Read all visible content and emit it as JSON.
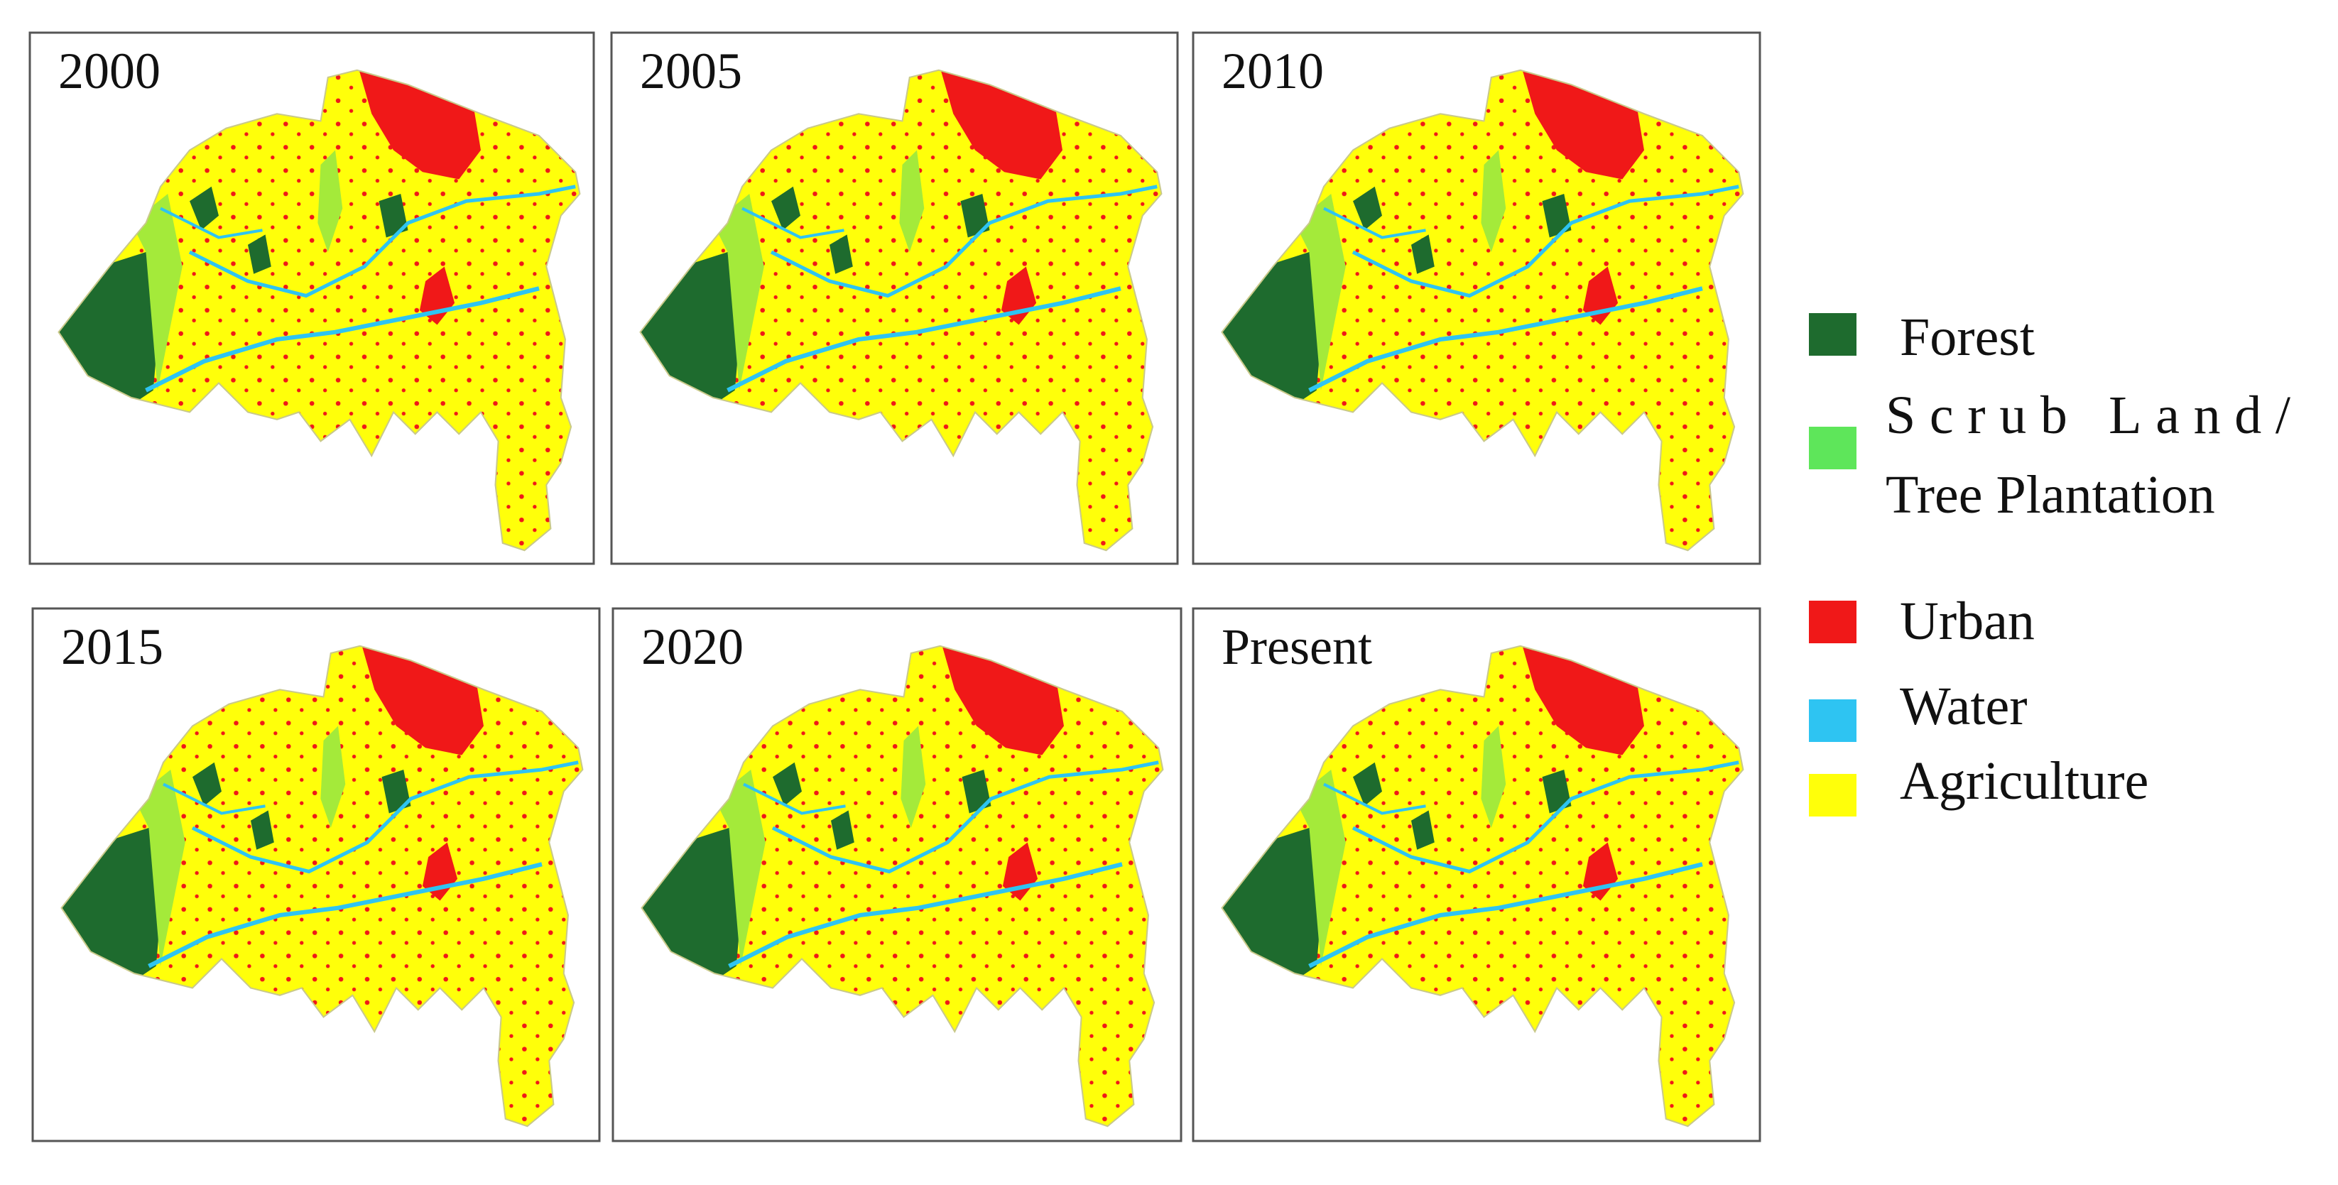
{
  "panels": [
    {
      "label": "2000"
    },
    {
      "label": "2005"
    },
    {
      "label": "2010"
    },
    {
      "label": "2015"
    },
    {
      "label": "2020"
    },
    {
      "label": "Present"
    }
  ],
  "legend": {
    "items": [
      {
        "label": "Forest",
        "color": "#1e6b2e"
      },
      {
        "label": [
          "Scrub Land/",
          "Tree Plantation"
        ],
        "color": "#5ee65a"
      },
      {
        "label": "Urban",
        "color": "#f01818"
      },
      {
        "label": "Water",
        "color": "#2ec4f2"
      },
      {
        "label": "Agriculture",
        "color": "#ffff0a"
      }
    ]
  }
}
